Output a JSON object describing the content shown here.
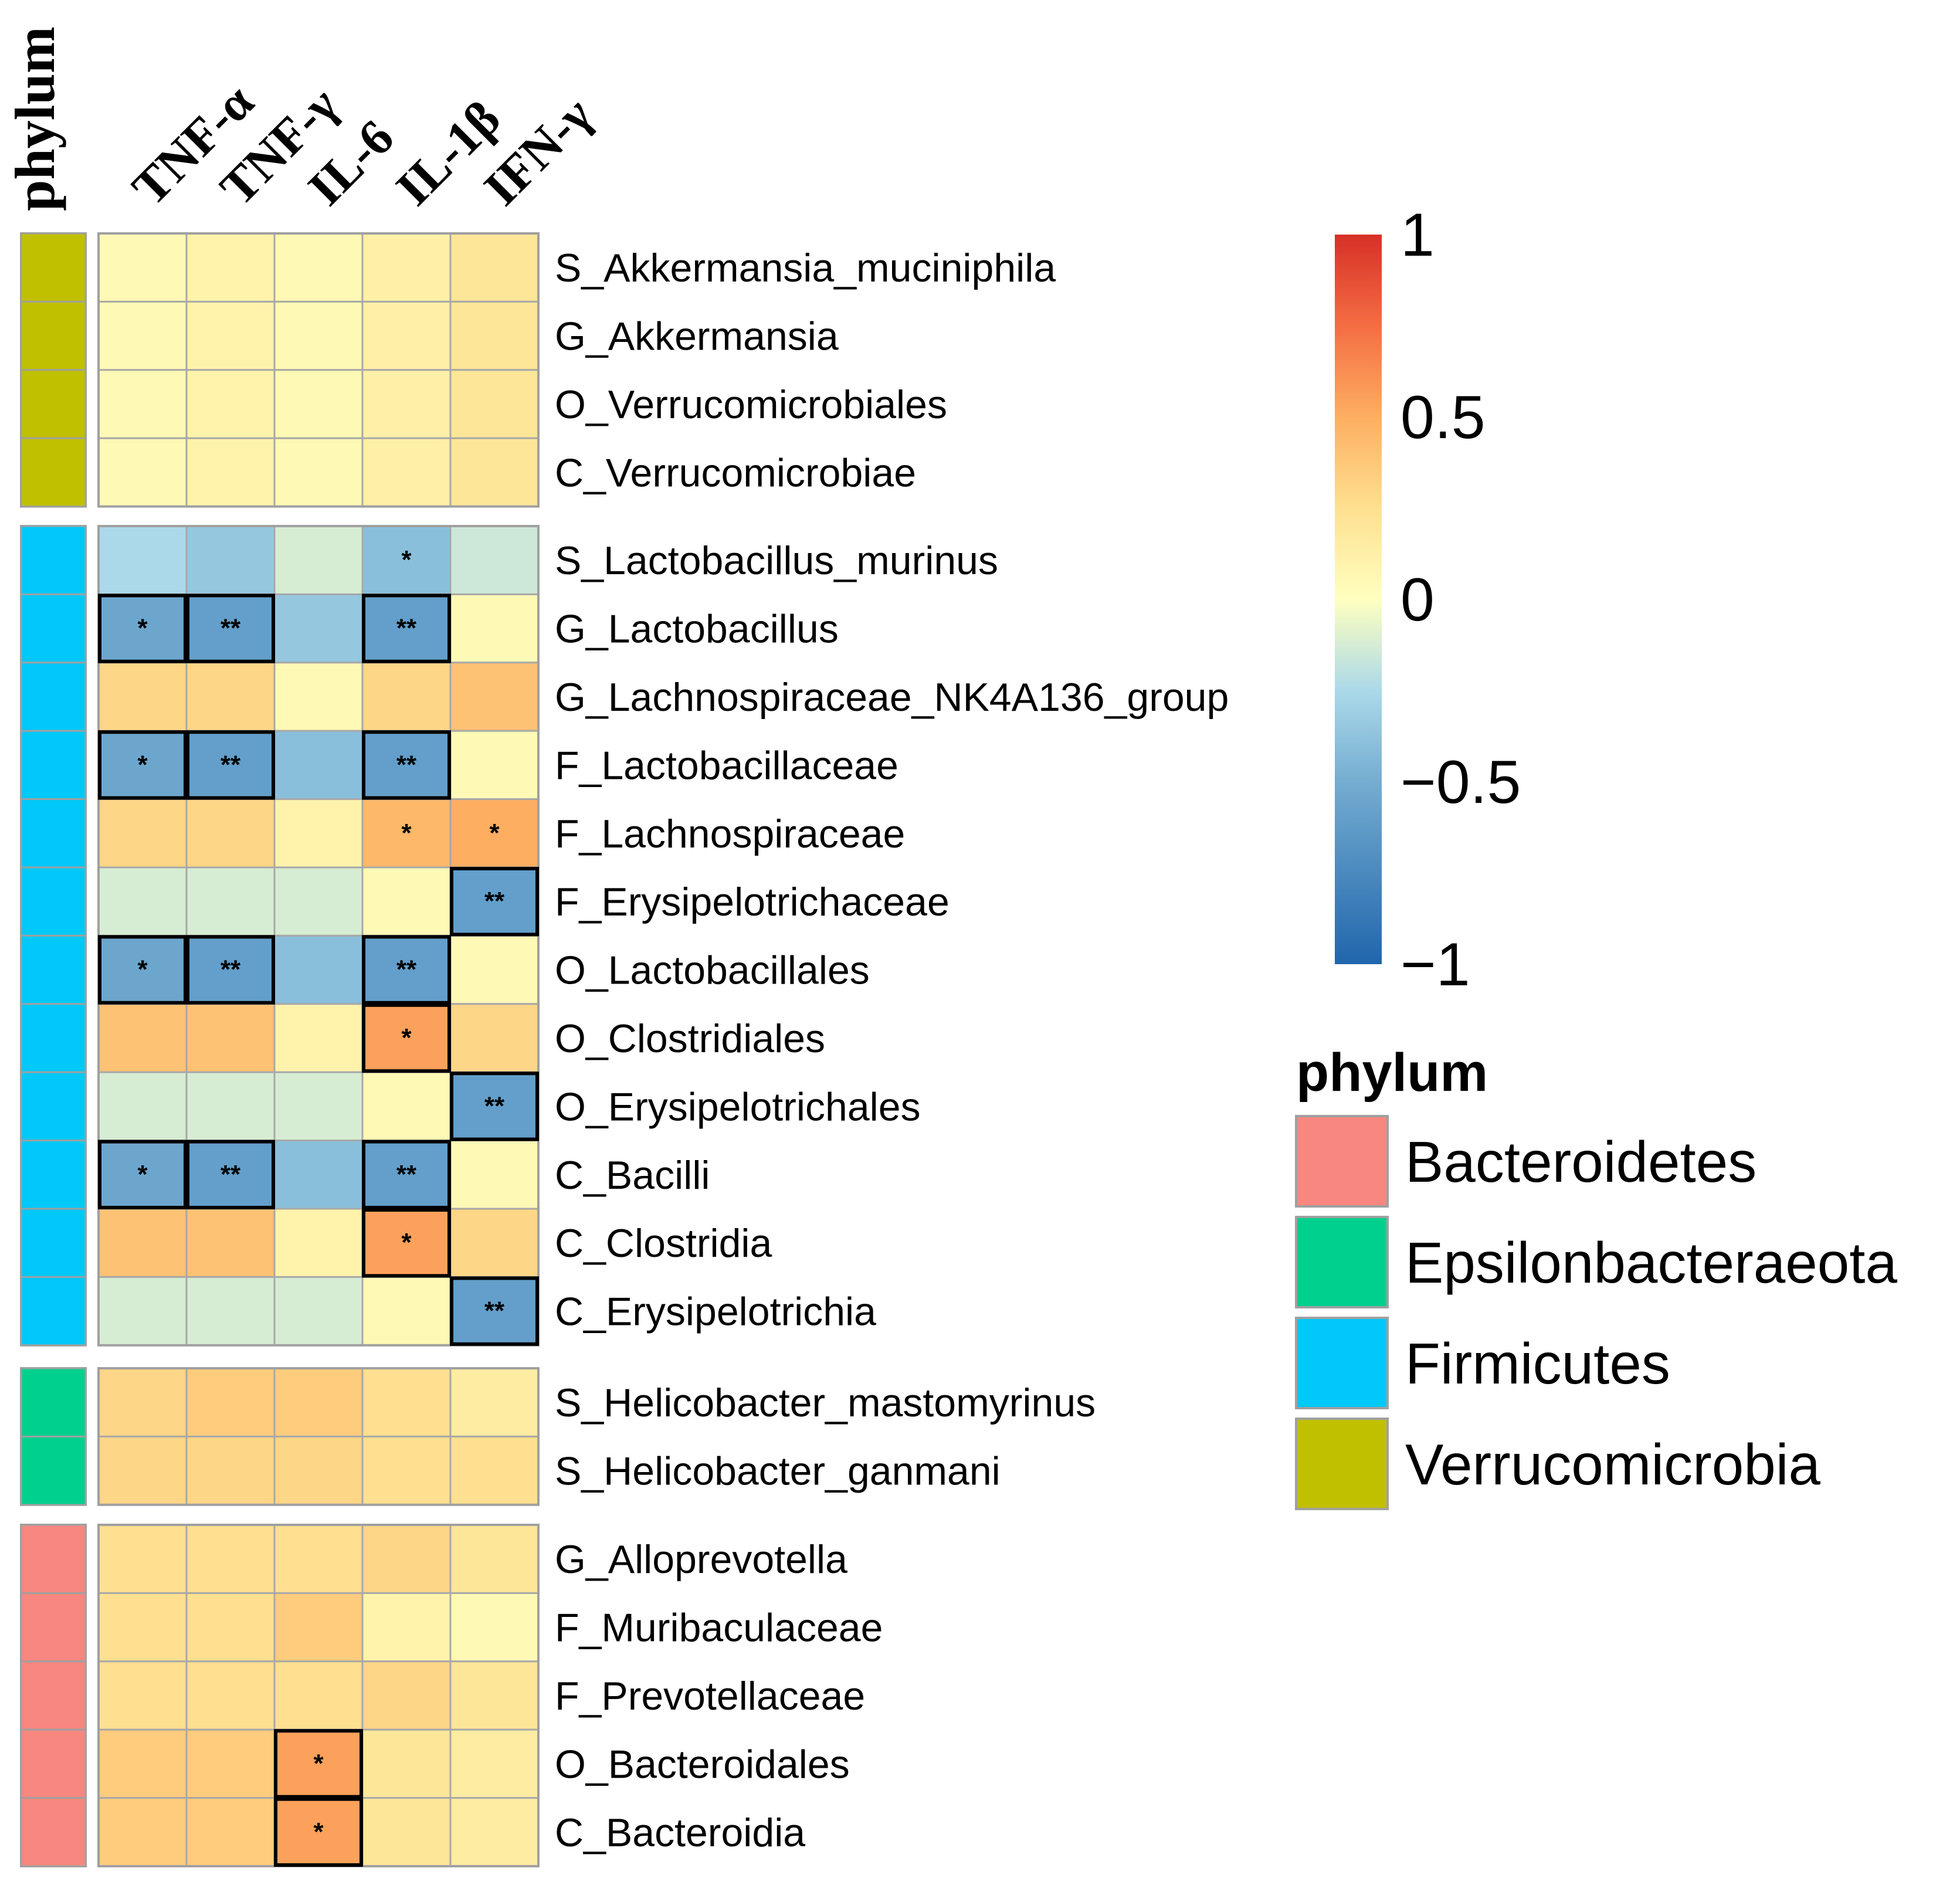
{
  "chart_data": {
    "type": "heatmap",
    "title": "",
    "annotation_header": "phylum",
    "columns": [
      "TNF-α",
      "TNF-γ",
      "IL-6",
      "IL-1β",
      "IFN-γ"
    ],
    "color_scale": {
      "min": -1,
      "max": 1,
      "ticks": [
        "1",
        "0.5",
        "0",
        "−0.5",
        "−1"
      ],
      "tick_values": [
        1,
        0.5,
        0,
        -0.5,
        -1
      ],
      "stops": [
        {
          "v": -1,
          "color": "#2166ac"
        },
        {
          "v": -0.5,
          "color": "#74add1"
        },
        {
          "v": -0.25,
          "color": "#abd9e9"
        },
        {
          "v": 0,
          "color": "#ffffbf"
        },
        {
          "v": 0.25,
          "color": "#fee090"
        },
        {
          "v": 0.5,
          "color": "#fdae61"
        },
        {
          "v": 0.75,
          "color": "#f46d43"
        },
        {
          "v": 1,
          "color": "#d73027"
        }
      ]
    },
    "phylum_legend": {
      "title": "phylum",
      "entries": [
        {
          "name": "Bacteroidetes",
          "color": "#f8877f"
        },
        {
          "name": "Epsilonbacteraeota",
          "color": "#00d08e"
        },
        {
          "name": "Firmicutes",
          "color": "#00c8f8"
        },
        {
          "name": "Verrucomicrobia",
          "color": "#c0c000"
        }
      ]
    },
    "groups": [
      {
        "phylum": "Verrucomicrobia",
        "rows": [
          {
            "label": "S_Akkermansia_muciniphila",
            "values": [
              0.05,
              0.1,
              0.05,
              0.12,
              0.2
            ],
            "sig": [
              "",
              "",
              "",
              "",
              ""
            ],
            "boxed": [
              false,
              false,
              false,
              false,
              false
            ]
          },
          {
            "label": "G_Akkermansia",
            "values": [
              0.05,
              0.1,
              0.05,
              0.12,
              0.2
            ],
            "sig": [
              "",
              "",
              "",
              "",
              ""
            ],
            "boxed": [
              false,
              false,
              false,
              false,
              false
            ]
          },
          {
            "label": "O_Verrucomicrobiales",
            "values": [
              0.05,
              0.1,
              0.05,
              0.12,
              0.2
            ],
            "sig": [
              "",
              "",
              "",
              "",
              ""
            ],
            "boxed": [
              false,
              false,
              false,
              false,
              false
            ]
          },
          {
            "label": "C_Verrucomicrobiae",
            "values": [
              0.05,
              0.1,
              0.05,
              0.12,
              0.2
            ],
            "sig": [
              "",
              "",
              "",
              "",
              ""
            ],
            "boxed": [
              false,
              false,
              false,
              false,
              false
            ]
          }
        ]
      },
      {
        "phylum": "Firmicutes",
        "rows": [
          {
            "label": "S_Lactobacillus_murinus",
            "values": [
              -0.25,
              -0.35,
              -0.12,
              -0.4,
              -0.15
            ],
            "sig": [
              "",
              "",
              "",
              "*",
              ""
            ],
            "boxed": [
              false,
              false,
              false,
              false,
              false
            ]
          },
          {
            "label": "G_Lactobacillus",
            "values": [
              -0.55,
              -0.6,
              -0.35,
              -0.6,
              0.05
            ],
            "sig": [
              "*",
              "**",
              "",
              "**",
              ""
            ],
            "boxed": [
              true,
              true,
              false,
              true,
              false
            ]
          },
          {
            "label": "G_Lachnospiraceae_NK4A136_group",
            "values": [
              0.3,
              0.3,
              0.05,
              0.3,
              0.4
            ],
            "sig": [
              "",
              "",
              "",
              "",
              ""
            ],
            "boxed": [
              false,
              false,
              false,
              false,
              false
            ]
          },
          {
            "label": "F_Lactobacillaceae",
            "values": [
              -0.55,
              -0.6,
              -0.4,
              -0.6,
              0.05
            ],
            "sig": [
              "*",
              "**",
              "",
              "**",
              ""
            ],
            "boxed": [
              true,
              true,
              false,
              true,
              false
            ]
          },
          {
            "label": "F_Lachnospiraceae",
            "values": [
              0.3,
              0.3,
              0.1,
              0.45,
              0.5
            ],
            "sig": [
              "",
              "",
              "",
              "*",
              "*"
            ],
            "boxed": [
              false,
              false,
              false,
              false,
              false
            ]
          },
          {
            "label": "F_Erysipelotrichaceae",
            "values": [
              -0.12,
              -0.12,
              -0.12,
              0.05,
              -0.6
            ],
            "sig": [
              "",
              "",
              "",
              "",
              "**"
            ],
            "boxed": [
              false,
              false,
              false,
              false,
              true
            ]
          },
          {
            "label": "O_Lactobacillales",
            "values": [
              -0.55,
              -0.6,
              -0.4,
              -0.6,
              0.05
            ],
            "sig": [
              "*",
              "**",
              "",
              "**",
              ""
            ],
            "boxed": [
              true,
              true,
              false,
              true,
              false
            ]
          },
          {
            "label": "O_Clostridiales",
            "values": [
              0.4,
              0.4,
              0.1,
              0.55,
              0.3
            ],
            "sig": [
              "",
              "",
              "",
              "*",
              ""
            ],
            "boxed": [
              false,
              false,
              false,
              true,
              false
            ]
          },
          {
            "label": "O_Erysipelotrichales",
            "values": [
              -0.12,
              -0.12,
              -0.12,
              0.05,
              -0.6
            ],
            "sig": [
              "",
              "",
              "",
              "",
              "**"
            ],
            "boxed": [
              false,
              false,
              false,
              false,
              true
            ]
          },
          {
            "label": "C_Bacilli",
            "values": [
              -0.55,
              -0.6,
              -0.4,
              -0.6,
              0.05
            ],
            "sig": [
              "*",
              "**",
              "",
              "**",
              ""
            ],
            "boxed": [
              true,
              true,
              false,
              true,
              false
            ]
          },
          {
            "label": "C_Clostridia",
            "values": [
              0.4,
              0.4,
              0.1,
              0.55,
              0.3
            ],
            "sig": [
              "",
              "",
              "",
              "*",
              ""
            ],
            "boxed": [
              false,
              false,
              false,
              true,
              false
            ]
          },
          {
            "label": "C_Erysipelotrichia",
            "values": [
              -0.12,
              -0.12,
              -0.12,
              0.05,
              -0.6
            ],
            "sig": [
              "",
              "",
              "",
              "",
              "**"
            ],
            "boxed": [
              false,
              false,
              false,
              false,
              true
            ]
          }
        ]
      },
      {
        "phylum": "Epsilonbacteraeota",
        "rows": [
          {
            "label": "S_Helicobacter_mastomyrinus",
            "values": [
              0.3,
              0.35,
              0.35,
              0.25,
              0.15
            ],
            "sig": [
              "",
              "",
              "",
              "",
              ""
            ],
            "boxed": [
              false,
              false,
              false,
              false,
              false
            ]
          },
          {
            "label": "S_Helicobacter_ganmani",
            "values": [
              0.3,
              0.3,
              0.3,
              0.25,
              0.25
            ],
            "sig": [
              "",
              "",
              "",
              "",
              ""
            ],
            "boxed": [
              false,
              false,
              false,
              false,
              false
            ]
          }
        ]
      },
      {
        "phylum": "Bacteroidetes",
        "rows": [
          {
            "label": "G_Alloprevotella",
            "values": [
              0.25,
              0.25,
              0.25,
              0.3,
              0.2
            ],
            "sig": [
              "",
              "",
              "",
              "",
              ""
            ],
            "boxed": [
              false,
              false,
              false,
              false,
              false
            ]
          },
          {
            "label": "F_Muribaculaceae",
            "values": [
              0.25,
              0.25,
              0.35,
              0.1,
              0.05
            ],
            "sig": [
              "",
              "",
              "",
              "",
              ""
            ],
            "boxed": [
              false,
              false,
              false,
              false,
              false
            ]
          },
          {
            "label": "F_Prevotellaceae",
            "values": [
              0.25,
              0.25,
              0.25,
              0.3,
              0.2
            ],
            "sig": [
              "",
              "",
              "",
              "",
              ""
            ],
            "boxed": [
              false,
              false,
              false,
              false,
              false
            ]
          },
          {
            "label": "O_Bacteroidales",
            "values": [
              0.35,
              0.35,
              0.55,
              0.2,
              0.15
            ],
            "sig": [
              "",
              "",
              "*",
              "",
              ""
            ],
            "boxed": [
              false,
              false,
              true,
              false,
              false
            ]
          },
          {
            "label": "C_Bacteroidia",
            "values": [
              0.35,
              0.35,
              0.55,
              0.2,
              0.15
            ],
            "sig": [
              "",
              "",
              "*",
              "",
              ""
            ],
            "boxed": [
              false,
              false,
              true,
              false,
              false
            ]
          }
        ]
      }
    ]
  }
}
